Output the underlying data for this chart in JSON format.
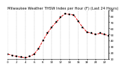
{
  "title": "Milwaukee Weather THSW Index per Hour (F) (Last 24 Hours)",
  "hours": [
    0,
    1,
    2,
    3,
    4,
    5,
    6,
    7,
    8,
    9,
    10,
    11,
    12,
    13,
    14,
    15,
    16,
    17,
    18,
    19,
    20,
    21,
    22,
    23
  ],
  "values": [
    18,
    16,
    14,
    13,
    12,
    14,
    18,
    27,
    40,
    52,
    62,
    70,
    78,
    84,
    83,
    82,
    72,
    62,
    54,
    52,
    50,
    52,
    50,
    48
  ],
  "line_color": "#dd0000",
  "marker_color": "#000000",
  "grid_color": "#999999",
  "bg_color": "#ffffff",
  "ylim": [
    10,
    90
  ],
  "xlim": [
    0,
    23
  ],
  "yticks": [
    10,
    20,
    30,
    40,
    50,
    60,
    70,
    80,
    90
  ],
  "ytick_labels": [
    "10",
    "20",
    "30",
    "40",
    "50",
    "60",
    "70",
    "80",
    "90"
  ],
  "xtick_positions": [
    0,
    2,
    4,
    6,
    8,
    10,
    12,
    14,
    16,
    18,
    20,
    22
  ],
  "xtick_labels": [
    "0",
    "2",
    "4",
    "6",
    "8",
    "10",
    "12",
    "14",
    "16",
    "18",
    "20",
    "22"
  ],
  "vgrid_positions": [
    0,
    2,
    4,
    6,
    8,
    10,
    12,
    14,
    16,
    18,
    20,
    22
  ],
  "title_fontsize": 3.8,
  "tick_fontsize": 3.0,
  "line_width": 0.7,
  "marker_size": 1.5
}
